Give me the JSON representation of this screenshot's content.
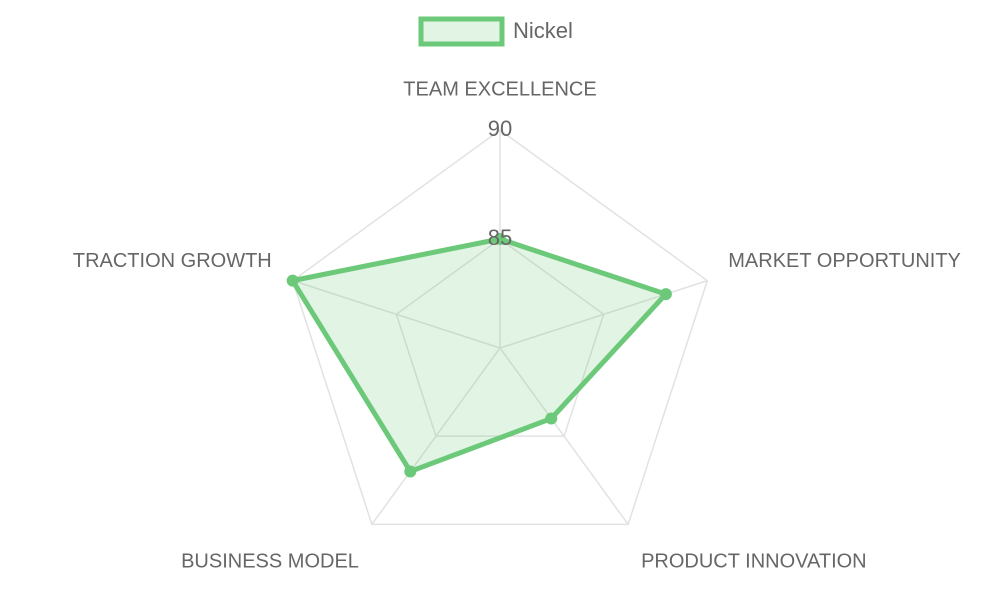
{
  "chart_data": {
    "type": "radar",
    "categories": [
      "TEAM EXCELLENCE",
      "MARKET OPPORTUNITY",
      "PRODUCT INNOVATION",
      "BUSINESS MODEL",
      "TRACTION GROWTH"
    ],
    "series": [
      {
        "name": "Nickel",
        "color": "#6cc97a",
        "values": [
          85,
          88,
          84,
          87,
          90
        ]
      }
    ],
    "ylim": [
      80,
      90
    ],
    "yticks": [
      85,
      90
    ],
    "grid": true,
    "legend": "top"
  }
}
